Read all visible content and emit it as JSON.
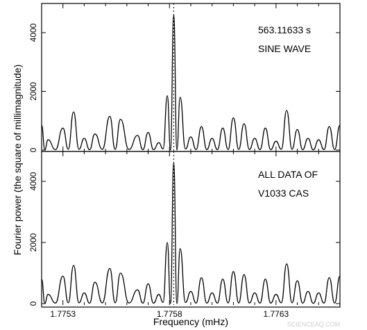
{
  "chart_data": [
    {
      "type": "line",
      "panel": "top",
      "annotations": [
        "563.11633 s",
        "SINE WAVE"
      ],
      "ylim": [
        0,
        5000
      ],
      "yticks": [
        0,
        2000,
        4000
      ],
      "xlim": [
        1.7752,
        1.7766
      ],
      "xticks": [
        1.7753,
        1.7758,
        1.7763
      ],
      "marker_x": 1.77582,
      "peaks": {
        "x": [
          1.7752,
          1.77523,
          1.7753,
          1.77535,
          1.7754,
          1.77545,
          1.77552,
          1.77557,
          1.77565,
          1.7757,
          1.77575,
          1.77579,
          1.77582,
          1.77585,
          1.7759,
          1.77595,
          1.776,
          1.77605,
          1.7761,
          1.77615,
          1.7762,
          1.77625,
          1.7763,
          1.77635,
          1.7764,
          1.77645,
          1.7765,
          1.77655,
          1.7766
        ],
        "y": [
          850,
          350,
          750,
          1300,
          400,
          550,
          1150,
          1050,
          500,
          600,
          250,
          1850,
          4600,
          1800,
          450,
          800,
          400,
          750,
          1100,
          900,
          400,
          750,
          300,
          1350,
          700,
          400,
          350,
          800,
          850
        ]
      }
    },
    {
      "type": "line",
      "panel": "bottom",
      "annotations": [
        "ALL DATA OF",
        "V1033  CAS"
      ],
      "xlabel": "Frequency (mHz)",
      "ylim": [
        0,
        5000
      ],
      "yticks": [
        0,
        2000,
        4000
      ],
      "xlim": [
        1.7752,
        1.7766
      ],
      "xticks": [
        1.7753,
        1.7758,
        1.7763
      ],
      "marker_x": 1.77582,
      "peaks": {
        "x": [
          1.7752,
          1.77523,
          1.7753,
          1.77535,
          1.7754,
          1.77545,
          1.77552,
          1.77557,
          1.77565,
          1.7757,
          1.77575,
          1.77579,
          1.77582,
          1.77585,
          1.7759,
          1.77595,
          1.776,
          1.77605,
          1.7761,
          1.77615,
          1.7762,
          1.77625,
          1.7763,
          1.77635,
          1.7764,
          1.77645,
          1.7765,
          1.77655,
          1.7766
        ],
        "y": [
          800,
          300,
          900,
          1250,
          350,
          700,
          1150,
          1000,
          450,
          650,
          300,
          2000,
          4600,
          1800,
          400,
          850,
          350,
          800,
          1050,
          950,
          350,
          800,
          300,
          1300,
          750,
          400,
          350,
          850,
          900
        ]
      }
    }
  ],
  "shared_ylabel": "Fourier power (the square of millimagnitude)",
  "watermark": "SCIENCEAQ.COM"
}
